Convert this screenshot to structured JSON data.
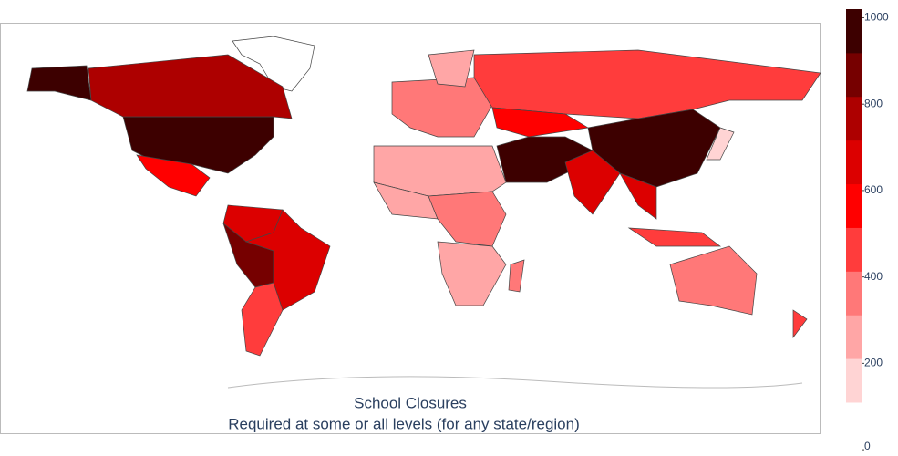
{
  "chart_data": {
    "type": "choropleth",
    "title": "School Closures",
    "subtitle": "Required at some or all levels (for any state/region)",
    "values": [
      1000,
      800,
      600,
      650,
      900,
      700,
      500,
      400,
      250,
      500,
      600,
      1000,
      950,
      700,
      700,
      500,
      300,
      250,
      350,
      300,
      400,
      400,
      200,
      500
    ],
    "colorscale": [
      "#ffd4d4",
      "#ffa6a6",
      "#ff7878",
      "#ff3c3c",
      "#ff0000",
      "#dc0000",
      "#ad0000",
      "#760000",
      "#3d0000"
    ],
    "zlim": [
      110,
      1020
    ],
    "zticks": [
      0,
      200,
      400,
      600,
      800,
      1000
    ]
  }
}
